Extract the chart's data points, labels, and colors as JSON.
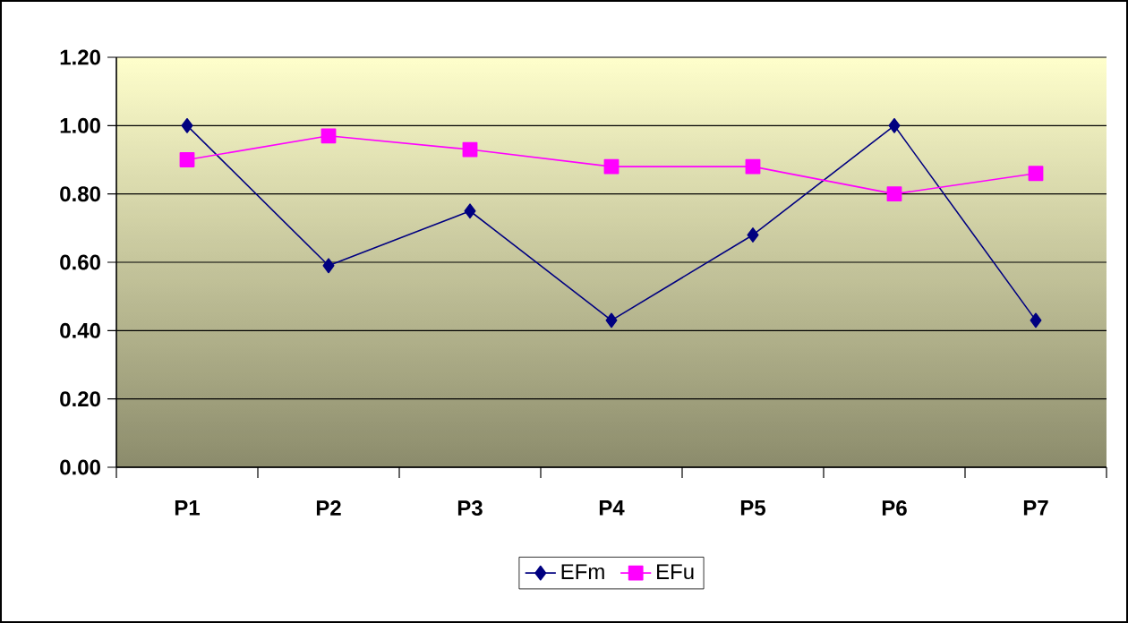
{
  "chart_data": {
    "type": "line",
    "categories": [
      "P1",
      "P2",
      "P3",
      "P4",
      "P5",
      "P6",
      "P7"
    ],
    "series": [
      {
        "name": "EFm",
        "color": "#000080",
        "marker": "diamond",
        "values": [
          1.0,
          0.59,
          0.75,
          0.43,
          0.68,
          1.0,
          0.43
        ]
      },
      {
        "name": "EFu",
        "color": "#ff00ff",
        "marker": "square",
        "values": [
          0.9,
          0.97,
          0.93,
          0.88,
          0.88,
          0.8,
          0.86
        ]
      }
    ],
    "ylim": [
      0,
      1.2
    ],
    "yticks": [
      {
        "value": 0,
        "label": "0.00"
      },
      {
        "value": 0.2,
        "label": "0.20"
      },
      {
        "value": 0.4,
        "label": "0.40"
      },
      {
        "value": 0.6,
        "label": "0.60"
      },
      {
        "value": 0.8,
        "label": "0.80"
      },
      {
        "value": 1.0,
        "label": "1.00"
      },
      {
        "value": 1.2,
        "label": "1.20"
      }
    ],
    "grid": "y",
    "legend": "bottom",
    "line_style": "solid"
  }
}
